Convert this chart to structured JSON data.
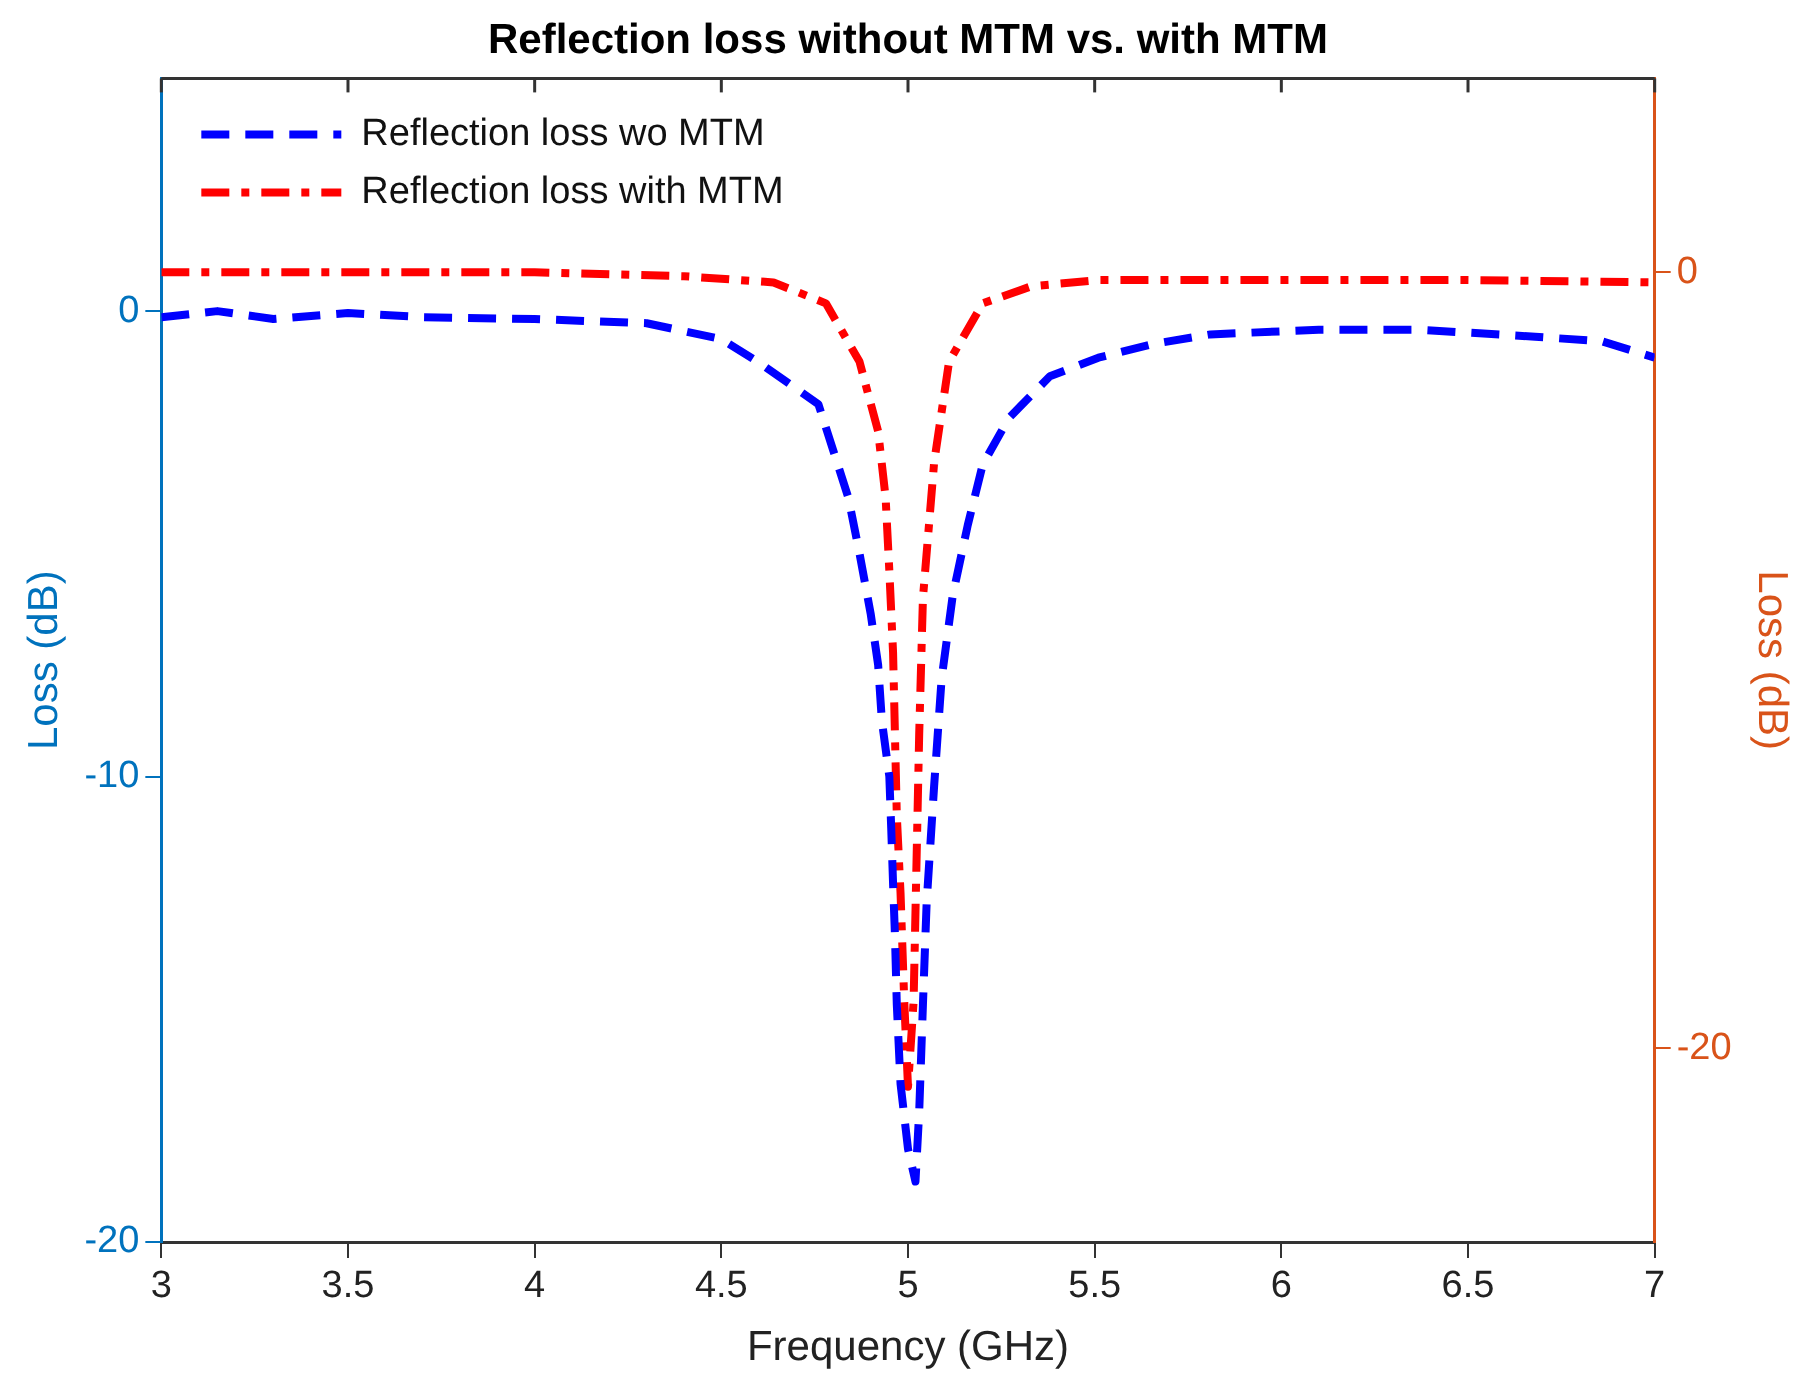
{
  "chart_data": {
    "type": "line",
    "title": "Reflection loss without MTM vs. with MTM",
    "xlabel": "Frequency (GHz)",
    "ylabel": "Loss (dB)",
    "y2label": "Loss (dB)",
    "xlim": [
      3,
      7
    ],
    "xticks": [
      3,
      3.5,
      4,
      4.5,
      5,
      5.5,
      6,
      6.5,
      7
    ],
    "ylim": [
      -20,
      5
    ],
    "yticks": [
      -20,
      -10,
      0
    ],
    "y2lim": [
      -25,
      5
    ],
    "y2ticks": [
      -20,
      0
    ],
    "grid": false,
    "legend": "top left",
    "marker": "none",
    "series": [
      {
        "name": "Reflection loss wo MTM",
        "color": "#0000ff",
        "line_style": "dashed",
        "axis": "y",
        "x": [
          3,
          3.15,
          3.3,
          3.5,
          3.7,
          4,
          4.3,
          4.5,
          4.6,
          4.76,
          4.8,
          4.84,
          4.87,
          4.9,
          4.92,
          4.93,
          4.95,
          4.955,
          4.96,
          4.965,
          4.97,
          4.98,
          5,
          5.02,
          5.03,
          5.04,
          5.05,
          5.07,
          5.09,
          5.12,
          5.16,
          5.2,
          5.27,
          5.38,
          5.51,
          5.66,
          5.81,
          6.1,
          6.37,
          6.68,
          6.86,
          7
        ],
        "values": [
          -0.13,
          0,
          -0.17,
          -0.04,
          -0.13,
          -0.17,
          -0.26,
          -0.6,
          -1.1,
          -2,
          -3,
          -4,
          -5.2,
          -6.5,
          -7.6,
          -8.8,
          -10,
          -11.1,
          -12.3,
          -13.4,
          -14.9,
          -16.6,
          -18,
          -18.7,
          -17.2,
          -14.9,
          -12.7,
          -10.2,
          -7.9,
          -6.1,
          -4.6,
          -3.3,
          -2.3,
          -1.4,
          -1,
          -0.7,
          -0.5,
          -0.4,
          -0.4,
          -0.55,
          -0.65,
          -1
        ]
      },
      {
        "name": "Reflection loss with MTM",
        "color": "#ff0000",
        "line_style": "dashdot",
        "axis": "y2",
        "x": [
          3,
          3.5,
          4,
          4.4,
          4.64,
          4.78,
          4.87,
          4.92,
          4.94,
          4.95,
          4.96,
          4.965,
          4.97,
          4.98,
          4.99,
          5,
          5.015,
          5.03,
          5.04,
          5.07,
          5.11,
          5.2,
          5.33,
          5.51,
          6,
          6.5,
          7
        ],
        "values": [
          0,
          0,
          0,
          -0.1,
          -0.26,
          -0.8,
          -2.3,
          -4.1,
          -5.8,
          -7.7,
          -9.8,
          -11.9,
          -14,
          -16,
          -18.8,
          -21,
          -18.8,
          -11.9,
          -8.4,
          -4.9,
          -2.3,
          -0.8,
          -0.36,
          -0.2,
          -0.2,
          -0.2,
          -0.26
        ]
      }
    ]
  }
}
